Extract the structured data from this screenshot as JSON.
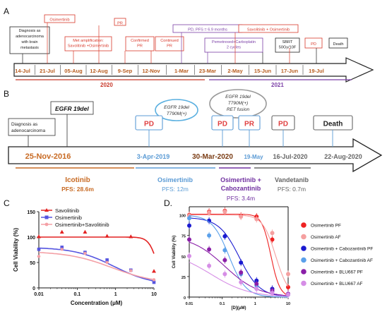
{
  "panels": {
    "a": "A",
    "b": "B",
    "c": "C",
    "d": "D."
  },
  "panel_a": {
    "dates": [
      "14-Jul",
      "21-Jul",
      "05-Aug",
      "12-Aug",
      "9-Sep",
      "12-Nov",
      "1-Mar",
      "23-Mar",
      "2-May",
      "15-Jun",
      "17-Jun",
      "19-Jul"
    ],
    "years": [
      "2020",
      "2021"
    ],
    "events_2020": [
      "Diagnosis as adenocarcinoma with brain metastasis",
      "Osimertinib",
      "Met amplification: Savolitinib +Osimertinib",
      "PR",
      "Confirmed PR",
      "Continued PR"
    ],
    "events_2021": [
      "PD, PFS = 6.9 months",
      "Pemetrexed+Carboplatin 2 cycles",
      "Savolitinib + Osimertinib",
      "SBRT 50Gy/10F",
      "PD",
      "Death"
    ],
    "colors": {
      "dark": "#222222",
      "red": "#d8392b",
      "purple": "#7b3fa6"
    }
  },
  "panel_b": {
    "dates": [
      "25-Nov-2016",
      "3-Apr-2019",
      "30-Mar-2020",
      "19-May",
      "16-Jul-2020",
      "22-Aug-2020"
    ],
    "top_events": [
      "Diagnosis as adenocarcinoma",
      "EGFR 19del"
    ],
    "status_boxes": [
      "PD",
      "PD",
      "PR",
      "PD",
      "Death"
    ],
    "bubbles": [
      "EGFR 19del\nT790M(+)",
      "EGFR 19del\nT790M(+)\nRET fusion"
    ],
    "therapies": [
      {
        "name": "Icotinib",
        "pfs": "PFS: 28.6m"
      },
      {
        "name": "Osimertinib",
        "pfs": "PFS: 12m"
      },
      {
        "name": "Osimertinib +\nCabozantinib",
        "pfs": "PFS: 3.4m"
      },
      {
        "name": "Vandetanib",
        "pfs": "PFS: 0.7m"
      }
    ],
    "colors": {
      "orange": "#c86a23",
      "blue": "#5b9bd5",
      "purple": "#7030a0",
      "gray": "#666666",
      "red": "#e04040"
    }
  },
  "chart_data": [
    {
      "type": "line",
      "xscale": "log",
      "xlabel": "Concentration (μM)",
      "ylabel": "Cell Viability (%)",
      "xlim": [
        0.01,
        10
      ],
      "ylim": [
        0,
        150
      ],
      "yticks": [
        0,
        50,
        100,
        150
      ],
      "xticks": [
        "0.01",
        "0.1",
        "1",
        "10"
      ],
      "legend_position": "top-left",
      "series": [
        {
          "name": "Savolitinib",
          "color": "#e32222",
          "marker": "triangle",
          "x": [
            0.01,
            0.04,
            0.16,
            0.6,
            2.5,
            10
          ],
          "y": [
            101,
            110,
            110,
            102,
            101,
            33
          ]
        },
        {
          "name": "Osimertinib",
          "color": "#5555e0",
          "marker": "square",
          "x": [
            0.01,
            0.04,
            0.16,
            0.6,
            2.5,
            10
          ],
          "y": [
            76,
            80,
            70,
            55,
            35,
            11
          ]
        },
        {
          "name": "Osimertinib+Savolitinib",
          "color": "#f4a0a6",
          "marker": "circle",
          "x": [
            0.01,
            0.04,
            0.16,
            0.6,
            2.5,
            10
          ],
          "y": [
            62,
            76,
            68,
            50,
            34,
            16
          ]
        }
      ]
    },
    {
      "type": "line",
      "xscale": "log",
      "xlabel": "[D](μM)",
      "ylabel": "Cell Viability (%)",
      "xlim": [
        0.01,
        10
      ],
      "ylim": [
        0,
        110
      ],
      "yticks": [
        0,
        25,
        50,
        75,
        100
      ],
      "xticks": [
        "0.01",
        "0.1",
        "1",
        "10"
      ],
      "legend_position": "right",
      "series": [
        {
          "name": "Osimertinib PF",
          "color": "#ee2222",
          "x": [
            0.01,
            0.04,
            0.12,
            0.37,
            1.1,
            3.3,
            10
          ],
          "y": [
            100,
            104,
            105,
            99,
            98,
            70,
            12
          ]
        },
        {
          "name": "Osimertinib AF",
          "color": "#f5a0a0",
          "x": [
            0.01,
            0.04,
            0.12,
            0.37,
            1.1,
            3.3,
            10
          ],
          "y": [
            99,
            103,
            104,
            98,
            95,
            78,
            28
          ]
        },
        {
          "name": "Osimertinib + Cabozantinib PF",
          "color": "#1a1ad0",
          "x": [
            0.01,
            0.04,
            0.12,
            0.37,
            1.1,
            3.3,
            10
          ],
          "y": [
            87,
            93,
            74,
            42,
            20,
            10,
            3
          ]
        },
        {
          "name": "Osimertinib + Cabozantinib AF",
          "color": "#5aa0ea",
          "x": [
            0.01,
            0.04,
            0.12,
            0.37,
            1.1,
            3.3,
            10
          ],
          "y": [
            96,
            75,
            57,
            28,
            14,
            7,
            3
          ]
        },
        {
          "name": "Osimertinib + BLU667 PF",
          "color": "#8a1fa8",
          "x": [
            0.01,
            0.04,
            0.12,
            0.37,
            1.1,
            3.3,
            10
          ],
          "y": [
            70,
            58,
            45,
            30,
            16,
            8,
            4
          ]
        },
        {
          "name": "Osimertinib + BLU667 AF",
          "color": "#d68ee6",
          "x": [
            0.01,
            0.04,
            0.12,
            0.37,
            1.1,
            3.3,
            10
          ],
          "y": [
            50,
            38,
            28,
            18,
            10,
            5,
            3
          ]
        }
      ]
    }
  ]
}
